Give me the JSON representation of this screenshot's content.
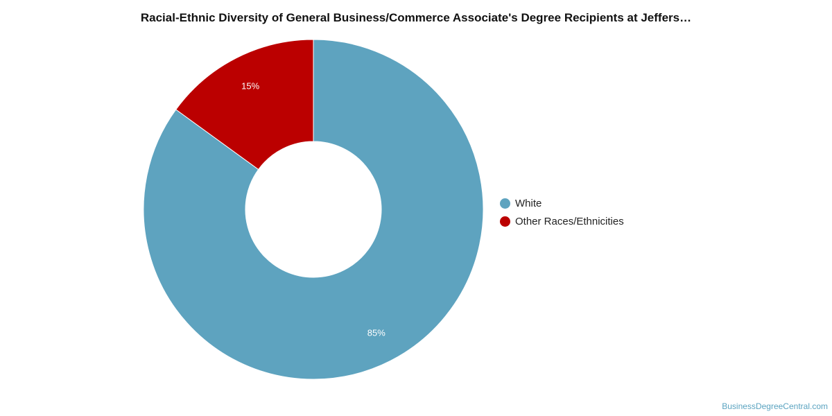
{
  "chart_data": {
    "type": "pie",
    "title": "Racial-Ethnic Diversity of General Business/Commerce Associate's Degree Recipients at Jeffers…",
    "donut": true,
    "categories": [
      "White",
      "Other Races/Ethnicities"
    ],
    "values": [
      85,
      15
    ],
    "data_labels": [
      "85%",
      "15%"
    ],
    "colors": [
      "#5ea3bf",
      "#bb0000"
    ],
    "legend_position": "right"
  },
  "footer": {
    "credit": "BusinessDegreeCentral.com"
  }
}
